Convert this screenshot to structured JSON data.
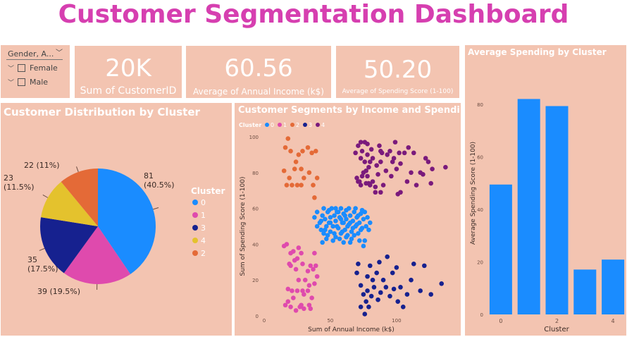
{
  "header": {
    "title": "Customer Segmentation Dashboard"
  },
  "slicer": {
    "title": "Gender, A...",
    "items": [
      {
        "label": "Female"
      },
      {
        "label": "Male"
      }
    ]
  },
  "kpis": [
    {
      "value": "20K",
      "label": "Sum of CustomerID"
    },
    {
      "value": "60.56",
      "label": "Average of Annual Income (k$)"
    },
    {
      "value": "50.20",
      "label": "Average of Spending Score (1-100)"
    }
  ],
  "colors": {
    "panel": "#f3c4b1",
    "title": "#d63fb0",
    "cluster0": "#1a8cff",
    "cluster1": "#df4aad",
    "cluster2": "#e46a37",
    "cluster3": "#16218f",
    "cluster4": "#e4c22d",
    "cluster1_scatter": "#7a1a7c"
  },
  "chart_data": [
    {
      "type": "pie",
      "title": "Customer Distribution by Cluster",
      "legend_title": "Cluster",
      "legend_placement": "right",
      "slices": [
        {
          "name": "0",
          "value": 81,
          "label": "81",
          "label2": "(40.5%)",
          "color": "#1a8cff"
        },
        {
          "name": "1",
          "value": 39,
          "label": "39 (19.5%)",
          "color": "#df4aad"
        },
        {
          "name": "3",
          "value": 35,
          "label": "35",
          "label2": "(17.5%)",
          "color": "#16218f"
        },
        {
          "name": "4",
          "value": 23,
          "label": "23",
          "label2": "(11.5%)",
          "color": "#e4c22d"
        },
        {
          "name": "2",
          "value": 22,
          "label": "22 (11%)",
          "color": "#e46a37"
        }
      ]
    },
    {
      "type": "scatter",
      "title": "Customer Segments by Income and Spending",
      "legend_title": "Cluster",
      "legend_placement": "top-left",
      "xlabel": "Sum of Annual Income (k$)",
      "ylabel": "Sum of Spending Score (1-100)",
      "xlim": [
        0,
        140
      ],
      "ylim": [
        0,
        100
      ],
      "xticks": [
        "0",
        "50",
        "100"
      ],
      "yticks": [
        "0",
        "20",
        "40",
        "60",
        "80",
        "100"
      ],
      "series": [
        {
          "name": "0",
          "color": "#1a8cff",
          "points": [
            [
              38,
              55
            ],
            [
              40,
              58
            ],
            [
              42,
              52
            ],
            [
              43,
              48
            ],
            [
              44,
              56
            ],
            [
              45,
              60
            ],
            [
              46,
              54
            ],
            [
              47,
              50
            ],
            [
              48,
              45
            ],
            [
              48,
              58
            ],
            [
              49,
              52
            ],
            [
              50,
              47
            ],
            [
              50,
              55
            ],
            [
              51,
              60
            ],
            [
              52,
              50
            ],
            [
              53,
              56
            ],
            [
              54,
              44
            ],
            [
              54,
              53
            ],
            [
              55,
              58
            ],
            [
              56,
              49
            ],
            [
              57,
              55
            ],
            [
              58,
              46
            ],
            [
              58,
              60
            ],
            [
              59,
              52
            ],
            [
              60,
              57
            ],
            [
              61,
              48
            ],
            [
              62,
              54
            ],
            [
              62,
              59
            ],
            [
              63,
              45
            ],
            [
              64,
              51
            ],
            [
              65,
              56
            ],
            [
              66,
              47
            ],
            [
              67,
              53
            ],
            [
              68,
              58
            ],
            [
              69,
              50
            ],
            [
              70,
              55
            ],
            [
              71,
              46
            ],
            [
              72,
              52
            ],
            [
              73,
              57
            ],
            [
              74,
              49
            ],
            [
              75,
              54
            ],
            [
              76,
              42
            ],
            [
              77,
              50
            ],
            [
              78,
              55
            ],
            [
              40,
              50
            ],
            [
              44,
              41
            ],
            [
              47,
              43
            ],
            [
              52,
              42
            ],
            [
              56,
              58
            ],
            [
              60,
              52
            ],
            [
              64,
              60
            ],
            [
              66,
              43
            ],
            [
              69,
              60
            ],
            [
              72,
              42
            ],
            [
              74,
              59
            ],
            [
              46,
              48
            ],
            [
              50,
              52
            ],
            [
              55,
              50
            ],
            [
              58,
              54
            ],
            [
              61,
              56
            ],
            [
              63,
              50
            ],
            [
              65,
              52
            ],
            [
              67,
              49
            ],
            [
              70,
              51
            ],
            [
              43,
              53
            ],
            [
              53,
              46
            ],
            [
              57,
              43
            ],
            [
              59,
              47
            ],
            [
              62,
              44
            ],
            [
              68,
              45
            ],
            [
              71,
              56
            ],
            [
              73,
              48
            ],
            [
              76,
              58
            ],
            [
              79,
              48
            ],
            [
              80,
              52
            ],
            [
              54,
              60
            ],
            [
              49,
              59
            ],
            [
              45,
              46
            ],
            [
              60,
              41
            ],
            [
              65,
              41
            ],
            [
              75,
              39
            ]
          ]
        },
        {
          "name": "1",
          "color": "#df4aad",
          "points": [
            [
              15,
              39
            ],
            [
              17,
              40
            ],
            [
              16,
              6
            ],
            [
              18,
              15
            ],
            [
              19,
              29
            ],
            [
              20,
              35
            ],
            [
              20,
              5
            ],
            [
              21,
              14
            ],
            [
              23,
              31
            ],
            [
              24,
              26
            ],
            [
              25,
              14
            ],
            [
              25,
              32
            ],
            [
              28,
              35
            ],
            [
              28,
              6
            ],
            [
              29,
              29
            ],
            [
              30,
              4
            ],
            [
              33,
              14
            ],
            [
              34,
              17
            ],
            [
              35,
              4
            ],
            [
              37,
              26
            ],
            [
              38,
              35
            ],
            [
              39,
              28
            ],
            [
              20,
              28
            ],
            [
              22,
              10
            ],
            [
              26,
              20
            ],
            [
              27,
              5
            ],
            [
              30,
              12
            ],
            [
              33,
              25
            ],
            [
              36,
              10
            ],
            [
              38,
              18
            ],
            [
              40,
              22
            ],
            [
              18,
              8
            ],
            [
              24,
              3
            ],
            [
              31,
              20
            ],
            [
              35,
              28
            ],
            [
              22,
              36
            ],
            [
              29,
              14
            ],
            [
              26,
              38
            ],
            [
              34,
              6
            ]
          ]
        },
        {
          "name": "2",
          "color": "#e46a37",
          "points": [
            [
              15,
              81
            ],
            [
              16,
              94
            ],
            [
              17,
              73
            ],
            [
              18,
              99
            ],
            [
              19,
              77
            ],
            [
              20,
              92
            ],
            [
              21,
              73
            ],
            [
              23,
              82
            ],
            [
              24,
              86
            ],
            [
              25,
              73
            ],
            [
              26,
              90
            ],
            [
              28,
              73
            ],
            [
              28,
              82
            ],
            [
              29,
              92
            ],
            [
              30,
              77
            ],
            [
              33,
              94
            ],
            [
              34,
              80
            ],
            [
              36,
              91
            ],
            [
              37,
              73
            ],
            [
              38,
              66
            ],
            [
              39,
              92
            ],
            [
              40,
              77
            ]
          ]
        },
        {
          "name": "3",
          "color": "#16218f",
          "points": [
            [
              70,
              24
            ],
            [
              71,
              29
            ],
            [
              73,
              17
            ],
            [
              73,
              5
            ],
            [
              75,
              12
            ],
            [
              76,
              1
            ],
            [
              77,
              8
            ],
            [
              78,
              14
            ],
            [
              78,
              22
            ],
            [
              79,
              5
            ],
            [
              80,
              28
            ],
            [
              81,
              11
            ],
            [
              82,
              20
            ],
            [
              83,
              16
            ],
            [
              85,
              24
            ],
            [
              86,
              9
            ],
            [
              87,
              30
            ],
            [
              88,
              13
            ],
            [
              90,
              20
            ],
            [
              92,
              16
            ],
            [
              93,
              33
            ],
            [
              95,
              11
            ],
            [
              97,
              24
            ],
            [
              98,
              15
            ],
            [
              100,
              27
            ],
            [
              101,
              8
            ],
            [
              103,
              16
            ],
            [
              105,
              5
            ],
            [
              108,
              12
            ],
            [
              111,
              20
            ],
            [
              113,
              29
            ],
            [
              118,
              14
            ],
            [
              121,
              28
            ],
            [
              126,
              12
            ],
            [
              134,
              18
            ]
          ]
        },
        {
          "name": "4",
          "color": "#7a1a7c",
          "points": [
            [
              69,
              91
            ],
            [
              70,
              77
            ],
            [
              71,
              95
            ],
            [
              71,
              75
            ],
            [
              72,
              75
            ],
            [
              73,
              88
            ],
            [
              73,
              73
            ],
            [
              74,
              92
            ],
            [
              75,
              80
            ],
            [
              76,
              86
            ],
            [
              77,
              74
            ],
            [
              78,
              90
            ],
            [
              78,
              78
            ],
            [
              79,
              83
            ],
            [
              80,
              73
            ],
            [
              81,
              93
            ],
            [
              82,
              75
            ],
            [
              85,
              84
            ],
            [
              86,
              79
            ],
            [
              87,
              95
            ],
            [
              88,
              69
            ],
            [
              88,
              86
            ],
            [
              90,
              73
            ],
            [
              93,
              90
            ],
            [
              97,
              86
            ],
            [
              98,
              88
            ],
            [
              99,
              97
            ],
            [
              101,
              68
            ],
            [
              103,
              85
            ],
            [
              103,
              69
            ],
            [
              113,
              91
            ],
            [
              120,
              79
            ],
            [
              126,
              74
            ],
            [
              137,
              83
            ],
            [
              78,
              96
            ],
            [
              79,
              74
            ],
            [
              76,
              97
            ],
            [
              82,
              88
            ],
            [
              84,
              72
            ],
            [
              89,
              91
            ],
            [
              92,
              81
            ],
            [
              96,
              78
            ],
            [
              100,
              82
            ],
            [
              106,
              91
            ],
            [
              108,
              75
            ],
            [
              115,
              73
            ],
            [
              118,
              80
            ],
            [
              122,
              88
            ],
            [
              127,
              82
            ],
            [
              73,
              97
            ],
            [
              74,
              78
            ],
            [
              77,
              81
            ],
            [
              80,
              86
            ],
            [
              84,
              69
            ],
            [
              88,
              92
            ],
            [
              95,
              92
            ],
            [
              102,
              91
            ],
            [
              109,
              94
            ],
            [
              111,
              80
            ],
            [
              124,
              86
            ]
          ]
        }
      ]
    },
    {
      "type": "bar",
      "title": "Average Spending by Cluster",
      "xlabel": "Cluster",
      "ylabel": "Average Spending Score (1-100)",
      "categories": [
        "0",
        "1",
        "2",
        "3",
        "4"
      ],
      "xticks": [
        "0",
        "2",
        "4"
      ],
      "values": [
        49.5,
        82.1,
        79.4,
        17.1,
        20.9
      ],
      "ylim": [
        0,
        90
      ],
      "yticks": [
        "0",
        "20",
        "40",
        "60",
        "80"
      ],
      "color": "#1a8cff"
    }
  ]
}
